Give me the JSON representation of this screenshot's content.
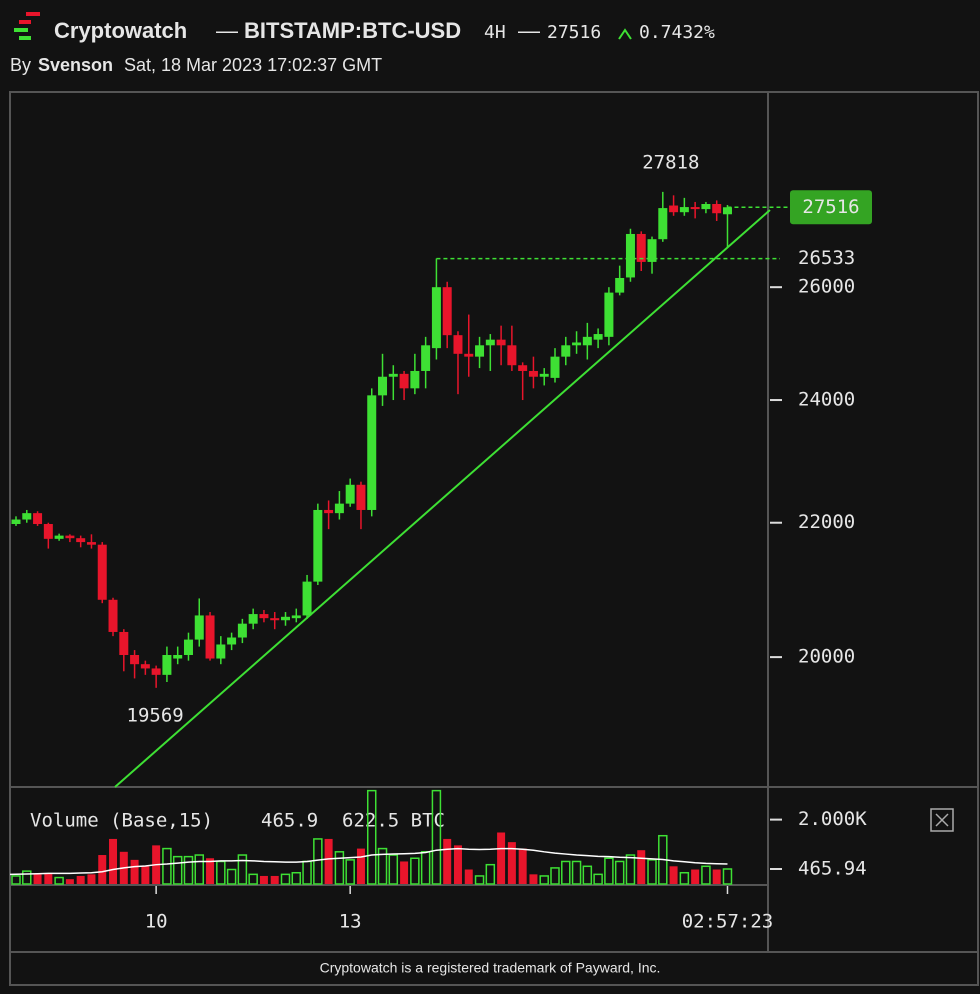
{
  "header": {
    "brand": "Cryptowatch",
    "separator": "—",
    "market": "BITSTAMP:BTC-USD",
    "interval": "4H",
    "change": "0.7432%",
    "by": "By",
    "author": "Svenson",
    "date": "Sat, 18 Mar 2023 17:02:37 GMT"
  },
  "volume_legend": {
    "label": "Volume (Base,15)",
    "value": "465.9",
    "ma": "622.5 BTC"
  },
  "footer": "Cryptowatch is a registered trademark of Payward, Inc.",
  "chart_data": {
    "type": "candlestick",
    "y_scale": "log",
    "ylim": [
      18240,
      29860
    ],
    "yticks": [
      20000,
      22000,
      24000,
      26000
    ],
    "xticks": [
      {
        "value": 13,
        "label": "10"
      },
      {
        "value": 31,
        "label": "13"
      }
    ],
    "countdown": "02:57:23",
    "up_color": "#3ee034",
    "down_color": "#e8152b",
    "ma_color": "#ffffff",
    "open": [
      21980,
      22050,
      22150,
      21980,
      21750,
      21800,
      21760,
      21700,
      21660,
      20830,
      20360,
      20030,
      19900,
      19840,
      19750,
      19980,
      20030,
      20250,
      20600,
      19980,
      20180,
      20280,
      20480,
      20620,
      20560,
      20530,
      20560,
      20600,
      21100,
      22200,
      22150,
      22300,
      22600,
      22200,
      24080,
      24400,
      24450,
      24200,
      24500,
      24900,
      26000,
      25130,
      24800,
      24750,
      24950,
      25050,
      24950,
      24600,
      24500,
      24400,
      24380,
      24750,
      24950,
      24950,
      25050,
      25100,
      25900,
      26180,
      27000,
      26470,
      26900,
      27550,
      27420,
      27520,
      27480,
      27580,
      27380
    ],
    "high": [
      22100,
      22200,
      22180,
      22000,
      21830,
      21820,
      21800,
      21820,
      21700,
      20860,
      20400,
      20100,
      19950,
      19880,
      20150,
      20150,
      20350,
      20850,
      20650,
      20300,
      20350,
      20550,
      20700,
      20680,
      20650,
      20650,
      20700,
      21200,
      22300,
      22350,
      22500,
      22700,
      22650,
      24200,
      24800,
      24600,
      24500,
      24800,
      25100,
      26533,
      26100,
      25200,
      25500,
      25100,
      25150,
      25300,
      25300,
      24650,
      24750,
      24550,
      24900,
      25100,
      25200,
      25350,
      25250,
      26000,
      26400,
      27100,
      27050,
      26950,
      27818,
      27750,
      27700,
      27620,
      27620,
      27650,
      27560
    ],
    "low": [
      21950,
      22000,
      21950,
      21600,
      21720,
      21700,
      21620,
      21600,
      20780,
      20300,
      19800,
      19700,
      19750,
      19569,
      19650,
      19900,
      19950,
      20150,
      19950,
      19900,
      20100,
      20200,
      20400,
      20500,
      20400,
      20450,
      20500,
      20550,
      21050,
      21900,
      22050,
      22250,
      21900,
      22100,
      23900,
      24000,
      24000,
      24100,
      24200,
      24700,
      24900,
      24100,
      24400,
      24550,
      24500,
      24600,
      24500,
      24000,
      24200,
      24250,
      24300,
      24600,
      24800,
      24700,
      24900,
      24950,
      25850,
      26100,
      26300,
      26250,
      26850,
      27350,
      27350,
      27300,
      27400,
      27250,
      26750
    ],
    "close": [
      22050,
      22150,
      21980,
      21750,
      21800,
      21760,
      21700,
      21660,
      20830,
      20360,
      20030,
      19900,
      19840,
      19750,
      20030,
      20030,
      20250,
      20600,
      19980,
      20180,
      20280,
      20480,
      20620,
      20560,
      20530,
      20580,
      20600,
      21100,
      22200,
      22150,
      22300,
      22600,
      22200,
      24080,
      24400,
      24450,
      24200,
      24500,
      24950,
      26000,
      25130,
      24800,
      24750,
      24950,
      25050,
      24950,
      24600,
      24500,
      24400,
      24450,
      24750,
      24950,
      25000,
      25100,
      25150,
      25900,
      26170,
      27000,
      26470,
      26900,
      27500,
      27420,
      27520,
      27480,
      27580,
      27400,
      27516
    ],
    "volume": [
      250,
      400,
      300,
      320,
      200,
      150,
      250,
      300,
      900,
      1400,
      1000,
      750,
      550,
      1200,
      1100,
      850,
      850,
      900,
      800,
      700,
      450,
      900,
      300,
      250,
      250,
      300,
      350,
      700,
      1400,
      1400,
      1000,
      750,
      1100,
      2900,
      1100,
      900,
      700,
      800,
      1000,
      2900,
      1400,
      1200,
      450,
      250,
      600,
      1600,
      1300,
      1100,
      300,
      250,
      500,
      700,
      700,
      550,
      300,
      800,
      700,
      900,
      1050,
      750,
      1500,
      550,
      350,
      450,
      550,
      450,
      465.94
    ],
    "volume_ma": [
      300,
      310,
      320,
      330,
      330,
      330,
      340,
      350,
      380,
      450,
      500,
      540,
      560,
      600,
      620,
      650,
      680,
      700,
      700,
      720,
      720,
      730,
      720,
      700,
      690,
      680,
      680,
      700,
      740,
      780,
      800,
      820,
      840,
      900,
      920,
      930,
      940,
      950,
      980,
      1050,
      1080,
      1100,
      1080,
      1070,
      1080,
      1100,
      1100,
      1080,
      1050,
      1000,
      960,
      930,
      900,
      880,
      860,
      850,
      830,
      820,
      800,
      780,
      760,
      720,
      690,
      660,
      640,
      630,
      622.5
    ],
    "volume_ylim": [
      0,
      2920
    ],
    "volume_yticks": [
      {
        "value": 2000,
        "label": "2.000K"
      },
      465.94
    ],
    "annotations": {
      "high": 27818,
      "low": 19569,
      "level": 26533,
      "last": 27516
    }
  }
}
